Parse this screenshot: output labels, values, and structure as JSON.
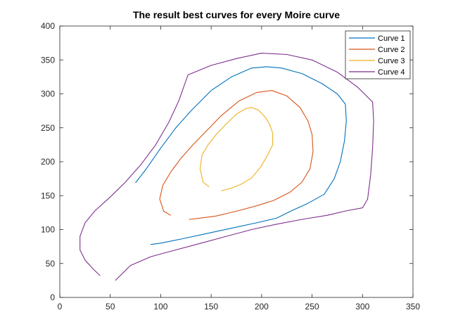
{
  "chart_data": {
    "type": "line",
    "title": "The result best curves for every Moire curve",
    "xlabel": "",
    "ylabel": "",
    "xlim": [
      0,
      350
    ],
    "ylim": [
      0,
      400
    ],
    "xticks": [
      0,
      50,
      100,
      150,
      200,
      250,
      300,
      350
    ],
    "yticks": [
      0,
      50,
      100,
      150,
      200,
      250,
      300,
      350,
      400
    ],
    "grid": false,
    "legend_position": "top-right",
    "series": [
      {
        "name": "Curve 1",
        "color": "#0072BD",
        "points": [
          [
            75,
            169
          ],
          [
            85,
            188
          ],
          [
            100,
            220
          ],
          [
            115,
            250
          ],
          [
            130,
            275
          ],
          [
            150,
            305
          ],
          [
            170,
            325
          ],
          [
            190,
            338
          ],
          [
            205,
            340
          ],
          [
            220,
            338
          ],
          [
            240,
            330
          ],
          [
            260,
            315
          ],
          [
            275,
            300
          ],
          [
            283,
            285
          ],
          [
            284,
            260
          ],
          [
            282,
            230
          ],
          [
            278,
            200
          ],
          [
            272,
            175
          ],
          [
            262,
            152
          ],
          [
            245,
            138
          ],
          [
            230,
            128
          ],
          [
            215,
            117
          ],
          [
            195,
            110
          ],
          [
            170,
            102
          ],
          [
            145,
            94
          ],
          [
            120,
            86
          ],
          [
            100,
            80
          ],
          [
            90,
            78
          ]
        ]
      },
      {
        "name": "Curve 2",
        "color": "#D95319",
        "points": [
          [
            110,
            121
          ],
          [
            103,
            127
          ],
          [
            99,
            145
          ],
          [
            102,
            165
          ],
          [
            110,
            185
          ],
          [
            120,
            205
          ],
          [
            132,
            225
          ],
          [
            145,
            245
          ],
          [
            160,
            268
          ],
          [
            178,
            290
          ],
          [
            195,
            302
          ],
          [
            210,
            305
          ],
          [
            225,
            297
          ],
          [
            238,
            280
          ],
          [
            246,
            260
          ],
          [
            250,
            240
          ],
          [
            251,
            215
          ],
          [
            248,
            190
          ],
          [
            240,
            170
          ],
          [
            228,
            155
          ],
          [
            212,
            143
          ],
          [
            195,
            135
          ],
          [
            175,
            127
          ],
          [
            155,
            120
          ],
          [
            140,
            117
          ],
          [
            128,
            115
          ]
        ]
      },
      {
        "name": "Curve 3",
        "color": "#EDB120",
        "points": [
          [
            148,
            163
          ],
          [
            142,
            170
          ],
          [
            139,
            190
          ],
          [
            141,
            210
          ],
          [
            147,
            225
          ],
          [
            155,
            240
          ],
          [
            165,
            256
          ],
          [
            175,
            270
          ],
          [
            184,
            278
          ],
          [
            190,
            280
          ],
          [
            197,
            276
          ],
          [
            204,
            265
          ],
          [
            208,
            255
          ],
          [
            211,
            242
          ],
          [
            211,
            225
          ],
          [
            206,
            210
          ],
          [
            199,
            192
          ],
          [
            190,
            176
          ],
          [
            180,
            167
          ],
          [
            170,
            161
          ],
          [
            160,
            157
          ]
        ]
      },
      {
        "name": "Curve 4",
        "color": "#7E2F8E",
        "points": [
          [
            40,
            32
          ],
          [
            33,
            42
          ],
          [
            25,
            55
          ],
          [
            20,
            70
          ],
          [
            20,
            90
          ],
          [
            25,
            110
          ],
          [
            35,
            128
          ],
          [
            50,
            148
          ],
          [
            65,
            170
          ],
          [
            80,
            195
          ],
          [
            95,
            225
          ],
          [
            108,
            258
          ],
          [
            118,
            290
          ],
          [
            127,
            328
          ],
          [
            150,
            342
          ],
          [
            175,
            352
          ],
          [
            200,
            360
          ],
          [
            225,
            358
          ],
          [
            250,
            350
          ],
          [
            275,
            332
          ],
          [
            295,
            310
          ],
          [
            310,
            288
          ],
          [
            311,
            260
          ],
          [
            310,
            220
          ],
          [
            308,
            180
          ],
          [
            305,
            145
          ],
          [
            300,
            132
          ],
          [
            285,
            128
          ],
          [
            265,
            121
          ],
          [
            240,
            115
          ],
          [
            215,
            108
          ],
          [
            190,
            100
          ],
          [
            165,
            90
          ],
          [
            140,
            80
          ],
          [
            115,
            70
          ],
          [
            90,
            60
          ],
          [
            70,
            47
          ],
          [
            55,
            25
          ]
        ]
      }
    ]
  }
}
